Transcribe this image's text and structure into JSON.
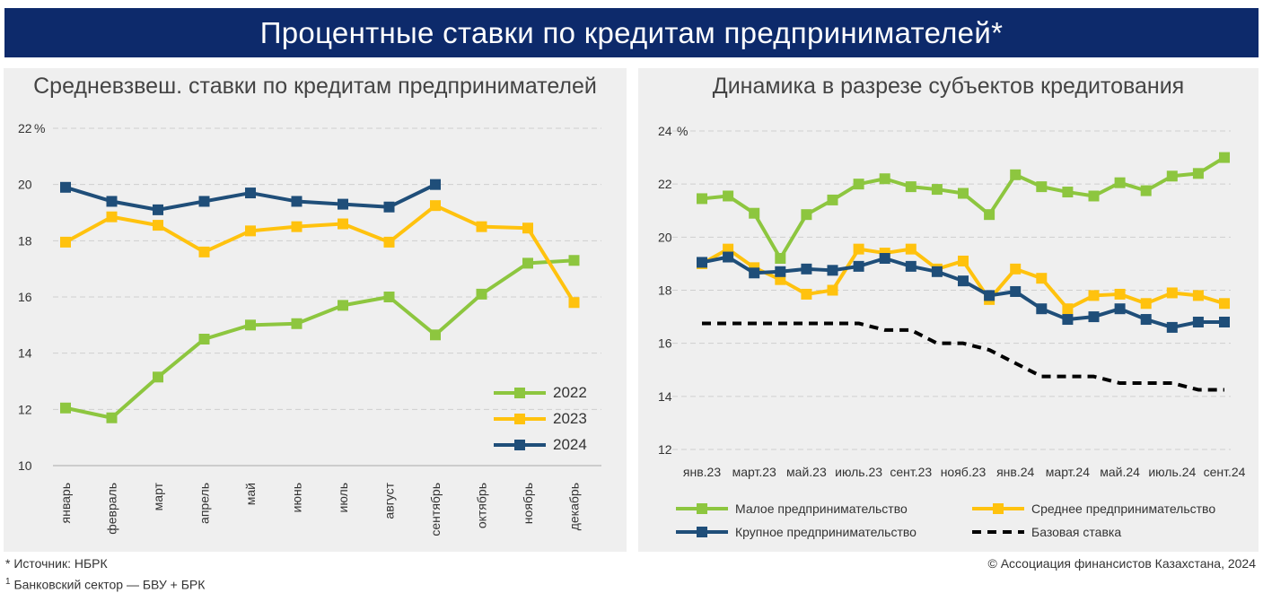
{
  "banner": {
    "title": "Процентные ставки по кредитам предпринимателей*"
  },
  "chart_data": [
    {
      "type": "line",
      "title": "Средневзвеш. ставки по кредитам предпринимателей",
      "ylabel": "%",
      "ylim": [
        10,
        22
      ],
      "yticks": [
        "10",
        "12",
        "14",
        "16",
        "18",
        "20",
        "22"
      ],
      "grid": true,
      "legend_position": "bottom-right",
      "categories": [
        "январь",
        "февраль",
        "март",
        "апрель",
        "май",
        "июнь",
        "июль",
        "август",
        "сентябрь",
        "октябрь",
        "ноябрь",
        "декабрь"
      ],
      "series": [
        {
          "name": "2022",
          "color": "#8dc63f",
          "marker": "square",
          "values": [
            12.05,
            11.7,
            13.15,
            14.5,
            15.0,
            15.05,
            15.7,
            16.0,
            14.65,
            16.1,
            17.2,
            17.3
          ]
        },
        {
          "name": "2023",
          "color": "#ffc20e",
          "marker": "square",
          "values": [
            17.95,
            18.85,
            18.55,
            17.6,
            18.35,
            18.5,
            18.6,
            17.95,
            19.25,
            18.5,
            18.45,
            15.8
          ]
        },
        {
          "name": "2024",
          "color": "#1f4e79",
          "marker": "square",
          "values": [
            19.9,
            19.4,
            19.1,
            19.4,
            19.7,
            19.4,
            19.3,
            19.2,
            20.0,
            null,
            null,
            null
          ]
        }
      ]
    },
    {
      "type": "line",
      "title": "Динамика в разрезе субъектов кредитования",
      "ylabel": "%",
      "ylim": [
        12,
        24
      ],
      "yticks": [
        "12",
        "14",
        "16",
        "18",
        "20",
        "22",
        "24"
      ],
      "grid": true,
      "legend_position": "bottom",
      "x": [
        "янв.23",
        "фев.23",
        "март.23",
        "апр.23",
        "май.23",
        "июн.23",
        "июль.23",
        "авг.23",
        "сент.23",
        "окт.23",
        "нояб.23",
        "дек.23",
        "янв.24",
        "фев.24",
        "март.24",
        "апр.24",
        "май.24",
        "июн.24",
        "июль.24",
        "авг.24",
        "сент.24"
      ],
      "xtick_labels": [
        "янв.23",
        "март.23",
        "май.23",
        "июль.23",
        "сент.23",
        "нояб.23",
        "янв.24",
        "март.24",
        "май.24",
        "июль.24",
        "сент.24"
      ],
      "series": [
        {
          "name": "Малое предпринимательство",
          "color": "#8dc63f",
          "marker": "square",
          "dash": false,
          "values": [
            21.45,
            21.55,
            20.9,
            19.2,
            20.85,
            21.4,
            22.0,
            22.2,
            21.9,
            21.8,
            21.65,
            20.85,
            22.35,
            21.9,
            21.7,
            21.55,
            22.05,
            21.75,
            22.3,
            22.4,
            23.0
          ]
        },
        {
          "name": "Среднее предпринимательство",
          "color": "#ffc20e",
          "marker": "square",
          "dash": false,
          "values": [
            19.0,
            19.55,
            18.85,
            18.4,
            17.85,
            18.0,
            19.55,
            19.4,
            19.55,
            18.8,
            19.1,
            17.65,
            18.8,
            18.45,
            17.3,
            17.8,
            17.85,
            17.5,
            17.9,
            17.8,
            17.5
          ]
        },
        {
          "name": "Крупное предпринимательство",
          "color": "#1f4e79",
          "marker": "square",
          "dash": false,
          "values": [
            19.05,
            19.25,
            18.65,
            18.7,
            18.8,
            18.75,
            18.9,
            19.2,
            18.9,
            18.7,
            18.35,
            17.8,
            17.95,
            17.3,
            16.9,
            17.0,
            17.3,
            16.9,
            16.6,
            16.8,
            16.8
          ]
        },
        {
          "name": "Базовая ставка",
          "color": "#000000",
          "marker": "none",
          "dash": true,
          "values": [
            16.75,
            16.75,
            16.75,
            16.75,
            16.75,
            16.75,
            16.75,
            16.5,
            16.5,
            16.0,
            16.0,
            15.75,
            15.25,
            14.75,
            14.75,
            14.75,
            14.5,
            14.5,
            14.5,
            14.25,
            14.25
          ]
        }
      ]
    }
  ],
  "footer": {
    "source": "* Источник: НБРК",
    "note_mark": "1",
    "note": " Банковский сектор — БВУ + БРК",
    "copyright": "© Ассоциация финансистов Казахстана, 2024"
  }
}
